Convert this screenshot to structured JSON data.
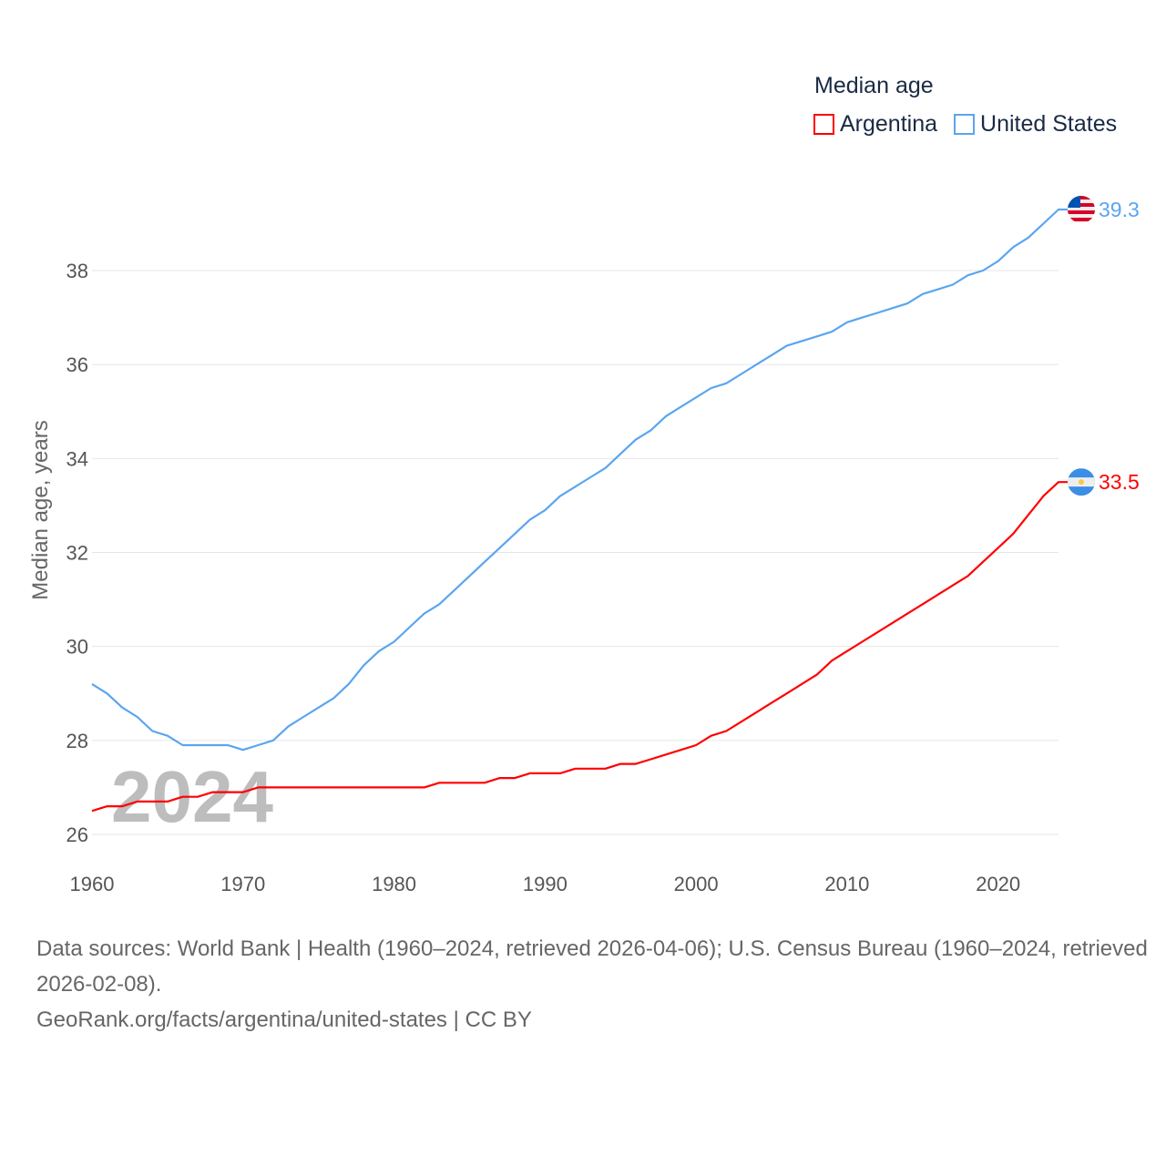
{
  "chart_data": {
    "type": "line",
    "title": "Median age",
    "xlabel": "",
    "ylabel": "Median age, years",
    "xlim": [
      1960,
      2024
    ],
    "ylim": [
      26,
      39.3
    ],
    "xticks": [
      "1960",
      "1970",
      "1980",
      "1990",
      "2000",
      "2010",
      "2020"
    ],
    "yticks": [
      "26",
      "28",
      "30",
      "32",
      "34",
      "36",
      "38"
    ],
    "grid": true,
    "legend_position": "top-right",
    "watermark_year": "2024",
    "x": [
      1960,
      1961,
      1962,
      1963,
      1964,
      1965,
      1966,
      1967,
      1968,
      1969,
      1970,
      1971,
      1972,
      1973,
      1974,
      1975,
      1976,
      1977,
      1978,
      1979,
      1980,
      1981,
      1982,
      1983,
      1984,
      1985,
      1986,
      1987,
      1988,
      1989,
      1990,
      1991,
      1992,
      1993,
      1994,
      1995,
      1996,
      1997,
      1998,
      1999,
      2000,
      2001,
      2002,
      2003,
      2004,
      2005,
      2006,
      2007,
      2008,
      2009,
      2010,
      2011,
      2012,
      2013,
      2014,
      2015,
      2016,
      2017,
      2018,
      2019,
      2020,
      2021,
      2022,
      2023,
      2024
    ],
    "series": [
      {
        "name": "Argentina",
        "color": "#ff0000",
        "end_label": "33.5",
        "flag": "argentina-flag",
        "values": [
          26.5,
          26.6,
          26.6,
          26.7,
          26.7,
          26.7,
          26.8,
          26.8,
          26.9,
          26.9,
          26.9,
          27.0,
          27.0,
          27.0,
          27.0,
          27.0,
          27.0,
          27.0,
          27.0,
          27.0,
          27.0,
          27.0,
          27.0,
          27.1,
          27.1,
          27.1,
          27.1,
          27.2,
          27.2,
          27.3,
          27.3,
          27.3,
          27.4,
          27.4,
          27.4,
          27.5,
          27.5,
          27.6,
          27.7,
          27.8,
          27.9,
          28.1,
          28.2,
          28.4,
          28.6,
          28.8,
          29.0,
          29.2,
          29.4,
          29.7,
          29.9,
          30.1,
          30.3,
          30.5,
          30.7,
          30.9,
          31.1,
          31.3,
          31.5,
          31.8,
          32.1,
          32.4,
          32.8,
          33.2,
          33.5
        ]
      },
      {
        "name": "United States",
        "color": "#5aa5f0",
        "end_label": "39.3",
        "flag": "us-flag",
        "values": [
          29.2,
          29.0,
          28.7,
          28.5,
          28.2,
          28.1,
          27.9,
          27.9,
          27.9,
          27.9,
          27.8,
          27.9,
          28.0,
          28.3,
          28.5,
          28.7,
          28.9,
          29.2,
          29.6,
          29.9,
          30.1,
          30.4,
          30.7,
          30.9,
          31.2,
          31.5,
          31.8,
          32.1,
          32.4,
          32.7,
          32.9,
          33.2,
          33.4,
          33.6,
          33.8,
          34.1,
          34.4,
          34.6,
          34.9,
          35.1,
          35.3,
          35.5,
          35.6,
          35.8,
          36.0,
          36.2,
          36.4,
          36.5,
          36.6,
          36.7,
          36.9,
          37.0,
          37.1,
          37.2,
          37.3,
          37.5,
          37.6,
          37.7,
          37.9,
          38.0,
          38.2,
          38.5,
          38.7,
          39.0,
          39.3
        ]
      }
    ]
  },
  "footer": {
    "sources": "Data sources: World Bank | Health (1960–2024, retrieved 2026-04-06); U.S. Census Bureau (1960–2024, retrieved 2026-02-08).",
    "link": "GeoRank.org/facts/argentina/united-states | CC BY"
  }
}
